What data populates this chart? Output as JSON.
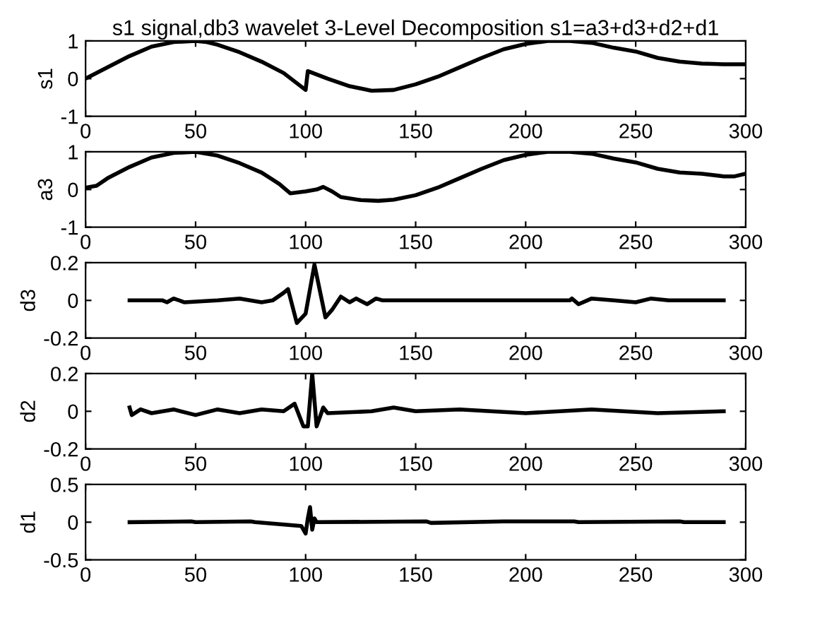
{
  "chart_data": [
    {
      "type": "line",
      "title": "s1 signal,db3 wavelet 3-Level Decomposition s1=a3+d3+d2+d1",
      "ylabel": "s1",
      "xlim": [
        0,
        300
      ],
      "xticks": [
        0,
        50,
        100,
        150,
        200,
        250,
        300
      ],
      "ylim": [
        -1,
        1
      ],
      "yticks": [
        -1,
        0,
        1
      ],
      "grid": false,
      "legend": false,
      "series": [
        {
          "color": "#000000",
          "x": [
            0,
            10,
            20,
            30,
            40,
            50,
            55,
            60,
            70,
            80,
            90,
            100,
            101,
            110,
            120,
            130,
            140,
            150,
            160,
            170,
            180,
            190,
            200,
            210,
            220,
            230,
            240,
            250,
            260,
            270,
            280,
            290,
            300
          ],
          "values": [
            0,
            0.3,
            0.6,
            0.85,
            0.97,
            1.0,
            0.97,
            0.9,
            0.7,
            0.45,
            0.15,
            -0.3,
            0.2,
            0,
            -0.2,
            -0.32,
            -0.3,
            -0.15,
            0.05,
            0.3,
            0.55,
            0.78,
            0.92,
            1.0,
            1.0,
            0.95,
            0.82,
            0.72,
            0.55,
            0.45,
            0.4,
            0.38,
            0.38
          ]
        }
      ]
    },
    {
      "type": "line",
      "ylabel": "a3",
      "xlim": [
        0,
        300
      ],
      "xticks": [
        0,
        50,
        100,
        150,
        200,
        250,
        300
      ],
      "ylim": [
        -1,
        1
      ],
      "yticks": [
        -1,
        0,
        1
      ],
      "grid": false,
      "legend": false,
      "series": [
        {
          "color": "#000000",
          "x": [
            0,
            5,
            10,
            20,
            30,
            40,
            50,
            60,
            70,
            80,
            88,
            93,
            100,
            105,
            108,
            112,
            116,
            125,
            133,
            140,
            150,
            160,
            170,
            180,
            190,
            200,
            210,
            220,
            230,
            240,
            250,
            260,
            270,
            280,
            290,
            295,
            300
          ],
          "values": [
            0.05,
            0.1,
            0.3,
            0.6,
            0.85,
            0.97,
            1.0,
            0.9,
            0.7,
            0.45,
            0.15,
            -0.1,
            -0.05,
            0,
            0.07,
            -0.05,
            -0.2,
            -0.28,
            -0.3,
            -0.27,
            -0.15,
            0.05,
            0.3,
            0.55,
            0.78,
            0.92,
            1.0,
            1.0,
            0.95,
            0.82,
            0.72,
            0.55,
            0.45,
            0.42,
            0.35,
            0.35,
            0.42
          ]
        }
      ]
    },
    {
      "type": "line",
      "ylabel": "d3",
      "xlim": [
        0,
        300
      ],
      "xticks": [
        0,
        50,
        100,
        150,
        200,
        250,
        300
      ],
      "ylim": [
        -0.2,
        0.2
      ],
      "yticks": [
        -0.2,
        0,
        0.2
      ],
      "grid": false,
      "legend": false,
      "series": [
        {
          "color": "#000000",
          "x": [
            20,
            35,
            37,
            40,
            45,
            60,
            70,
            80,
            85,
            90,
            92,
            96,
            100,
            104,
            109,
            112,
            116,
            120,
            123,
            128,
            132,
            135,
            220,
            221,
            224,
            230,
            240,
            250,
            257,
            265,
            290
          ],
          "values": [
            0,
            0,
            -0.01,
            0.01,
            -0.01,
            0,
            0.01,
            -0.01,
            0,
            0.04,
            0.06,
            -0.12,
            -0.07,
            0.19,
            -0.09,
            -0.05,
            0.02,
            -0.01,
            0.01,
            -0.02,
            0.01,
            0,
            0,
            0.01,
            -0.02,
            0.01,
            0,
            -0.01,
            0.01,
            0,
            0
          ]
        }
      ]
    },
    {
      "type": "line",
      "ylabel": "d2",
      "xlim": [
        0,
        300
      ],
      "xticks": [
        0,
        50,
        100,
        150,
        200,
        250,
        300
      ],
      "ylim": [
        -0.2,
        0.2
      ],
      "yticks": [
        -0.2,
        0,
        0.2
      ],
      "grid": false,
      "legend": false,
      "series": [
        {
          "color": "#000000",
          "x": [
            20,
            21,
            25,
            30,
            40,
            50,
            60,
            70,
            80,
            90,
            95,
            99,
            101,
            103,
            105,
            108,
            110,
            130,
            140,
            150,
            170,
            200,
            230,
            260,
            290
          ],
          "values": [
            0.02,
            -0.02,
            0.01,
            -0.01,
            0.01,
            -0.02,
            0.01,
            -0.01,
            0.01,
            0,
            0.04,
            -0.08,
            -0.08,
            0.2,
            -0.08,
            0.02,
            -0.01,
            0,
            0.02,
            0,
            0.01,
            -0.01,
            0.01,
            -0.01,
            0
          ]
        }
      ]
    },
    {
      "type": "line",
      "ylabel": "d1",
      "xlim": [
        0,
        300
      ],
      "xticks": [
        0,
        50,
        100,
        150,
        200,
        250,
        300
      ],
      "ylim": [
        -0.5,
        0.5
      ],
      "yticks": [
        -0.5,
        0,
        0.5
      ],
      "grid": false,
      "legend": false,
      "series": [
        {
          "color": "#000000",
          "x": [
            20,
            48,
            50,
            75,
            77,
            98,
            100,
            101,
            102,
            103,
            104,
            105,
            155,
            157,
            190,
            222,
            224,
            270,
            272,
            290
          ],
          "values": [
            0,
            0.01,
            0,
            0.01,
            0,
            -0.05,
            -0.15,
            0.05,
            0.2,
            -0.1,
            0.05,
            0,
            0.01,
            -0.01,
            0.01,
            0.01,
            0,
            0.01,
            0,
            0
          ]
        }
      ]
    }
  ]
}
